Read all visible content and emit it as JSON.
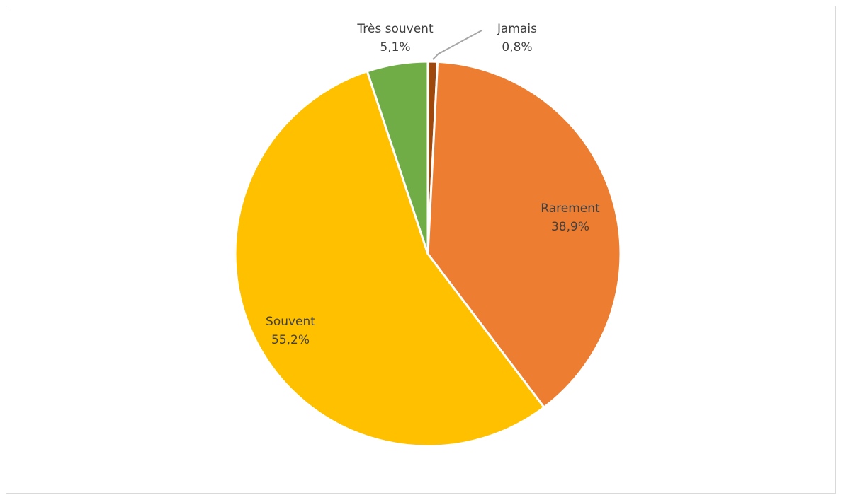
{
  "chart_data": {
    "type": "pie",
    "title": "",
    "categories": [
      "Jamais",
      "Rarement",
      "Souvent",
      "Très souvent"
    ],
    "values": [
      0.8,
      38.9,
      55.2,
      5.1
    ],
    "value_labels": [
      "0,8%",
      "38,9%",
      "55,2%",
      "5,1%"
    ],
    "colors": [
      "#9e480e",
      "#ed7d31",
      "#ffc000",
      "#70ad47"
    ],
    "start_angle_deg": 0,
    "direction": "clockwise",
    "legend": "none",
    "data_labels": true
  }
}
